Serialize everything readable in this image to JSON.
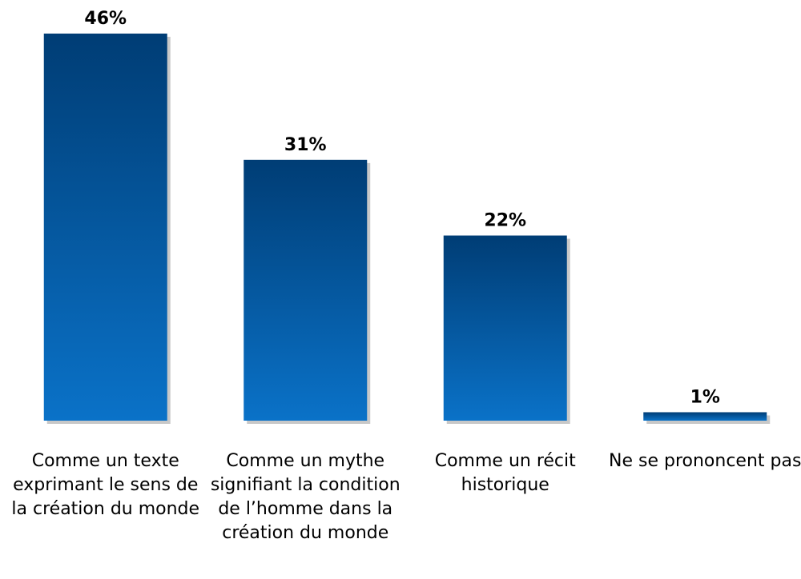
{
  "chart_data": {
    "type": "bar",
    "categories": [
      "Comme un texte exprimant le sens de la création du monde",
      "Comme un mythe signifiant la condition de l’homme dans la création du monde",
      "Comme un récit historique",
      "Ne se prononcent pas"
    ],
    "values": [
      46,
      31,
      22,
      1
    ],
    "value_labels": [
      "46%",
      "31%",
      "22%",
      "1%"
    ],
    "color": "#0a72c8"
  }
}
